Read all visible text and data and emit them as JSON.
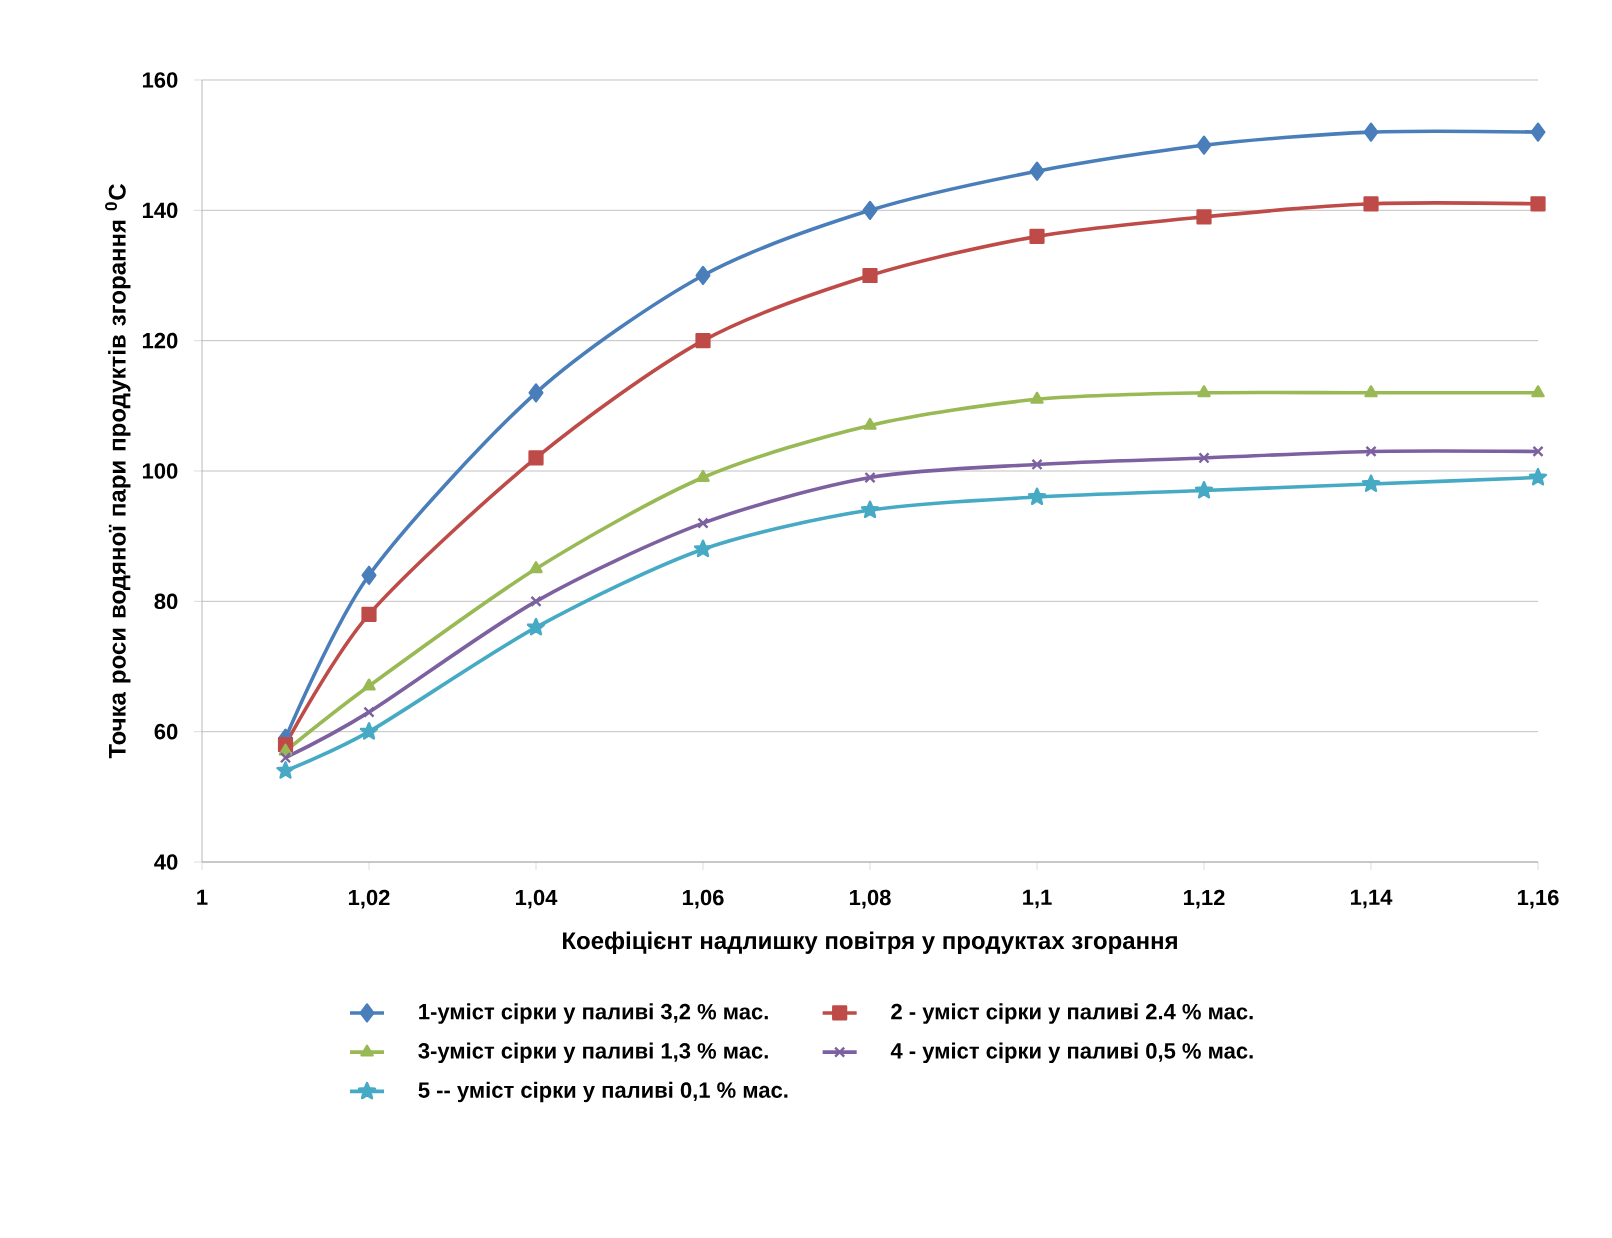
{
  "chart_data": {
    "type": "line",
    "xlabel": "Коефіцієнт надлишку повітря у продуктах згорання",
    "ylabel": "Точка роси водяної пари продуктів згорання $^{0}$C",
    "x": [
      1.01,
      1.02,
      1.04,
      1.06,
      1.08,
      1.1,
      1.12,
      1.14,
      1.16
    ],
    "xlim": [
      1,
      1.16
    ],
    "xticks": [
      1,
      {
        "value": 1.02,
        "label": "1,02"
      },
      {
        "value": 1.04,
        "label": "1,04"
      },
      {
        "value": 1.06,
        "label": "1,06"
      },
      {
        "value": 1.08,
        "label": "1,08"
      },
      {
        "value": 1.1,
        "label": "1,1"
      },
      {
        "value": 1.12,
        "label": "1,12"
      },
      {
        "value": 1.14,
        "label": "1,14"
      },
      {
        "value": 1.16,
        "label": "1,16"
      }
    ],
    "ylim": [
      40,
      160
    ],
    "yticks": [
      40,
      60,
      80,
      100,
      120,
      140,
      160
    ],
    "grid": "y",
    "legend": "bottom",
    "line_style": "solid",
    "series": [
      {
        "name": "1-уміст сірки у паливі 3,2 % мас.",
        "color": "#4a7ebb",
        "marker": "diamond",
        "values": [
          59,
          84,
          112,
          130,
          140,
          146,
          150,
          152,
          152
        ]
      },
      {
        "name": "2 - уміст сірки у паливі 2.4 % мас.",
        "color": "#be4b48",
        "marker": "square",
        "values": [
          58,
          78,
          102,
          120,
          130,
          136,
          139,
          141,
          141
        ]
      },
      {
        "name": "3-уміст сірки у паливі 1,3 % мас.",
        "color": "#98b954",
        "marker": "triangle",
        "values": [
          57,
          67,
          85,
          99,
          107,
          111,
          112,
          112,
          112
        ]
      },
      {
        "name": "4 - уміст сірки у паливі 0,5 % мас.",
        "color": "#7d60a0",
        "marker": "cross",
        "values": [
          56,
          63,
          80,
          92,
          99,
          101,
          102,
          103,
          103
        ]
      },
      {
        "name": "5 -- уміст сірки у паливі 0,1 % мас.",
        "color": "#46aac5",
        "marker": "star",
        "values": [
          54,
          60,
          76,
          88,
          94,
          96,
          97,
          98,
          99
        ]
      }
    ]
  }
}
